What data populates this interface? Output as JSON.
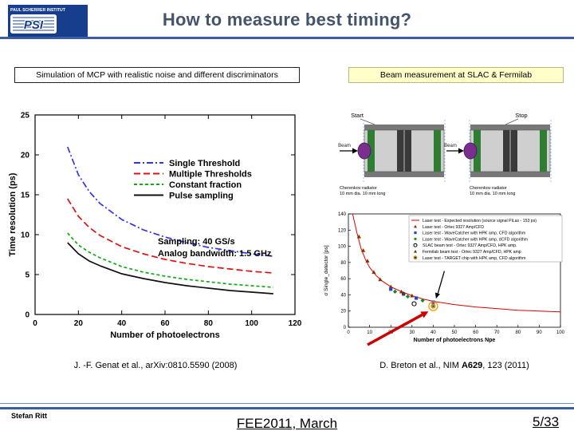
{
  "header": {
    "logo_org": "PAUL SCHERRER INSTITUT",
    "logo_brand": "PSI",
    "title": "How to measure best timing?"
  },
  "colors": {
    "brand_blue": "#173e8c",
    "divider_blue": "#3d5ca8",
    "highlight_yellow": "#ffffc9"
  },
  "panels": {
    "left_label": "Simulation of MCP with realistic noise and different discriminators",
    "right_label": "Beam measurement at SLAC & Fermilab"
  },
  "diagram": {
    "start": "Start",
    "stop": "Stop",
    "beam": "Beam",
    "caption_line1": "Cherenkov radiator",
    "caption_line2": "10 mm dia. 10 mm long"
  },
  "citations": {
    "left": "J. -F. Genat et al., arXiv:0810.5590 (2008)",
    "right_pre": "D. Breton et al., NIM ",
    "right_bold": "A629",
    "right_post": ", 123 (2011)"
  },
  "footer": {
    "author": "Stefan Ritt",
    "conference": "FEE2011, March",
    "page": "5/33"
  },
  "chart_data": [
    {
      "type": "line",
      "title": "",
      "xlabel": "Number of photoelectrons",
      "ylabel": "Time resolution (ps)",
      "xlim": [
        0,
        120
      ],
      "ylim": [
        0,
        25
      ],
      "xticks": [
        0,
        20,
        40,
        60,
        80,
        100,
        120
      ],
      "yticks": [
        0,
        5,
        10,
        15,
        20,
        25
      ],
      "grid": false,
      "legend_position": "upper-center-right",
      "annotation": [
        "Sampling: 40 GS/s",
        "Analog bandwidth: 1.5 GHz"
      ],
      "series": [
        {
          "name": "Single Threshold",
          "color": "#3333ee",
          "style": "dash-dot",
          "x": [
            15,
            20,
            25,
            30,
            40,
            50,
            60,
            70,
            80,
            90,
            100,
            110
          ],
          "y": [
            21.0,
            17.5,
            15.4,
            13.9,
            11.9,
            10.6,
            9.7,
            9.0,
            8.4,
            8.0,
            7.6,
            7.3
          ]
        },
        {
          "name": "Multiple Thresholds",
          "color": "#dd1111",
          "style": "dashed",
          "x": [
            15,
            20,
            25,
            30,
            40,
            50,
            60,
            70,
            80,
            90,
            100,
            110
          ],
          "y": [
            14.5,
            12.3,
            10.9,
            9.9,
            8.5,
            7.6,
            6.9,
            6.4,
            6.0,
            5.7,
            5.4,
            5.2
          ]
        },
        {
          "name": "Constant fraction",
          "color": "#11aa11",
          "style": "short-dash",
          "x": [
            15,
            20,
            25,
            30,
            40,
            50,
            60,
            70,
            80,
            90,
            100,
            110
          ],
          "y": [
            10.2,
            8.7,
            7.8,
            7.1,
            6.0,
            5.3,
            4.8,
            4.4,
            4.1,
            3.8,
            3.6,
            3.4
          ]
        },
        {
          "name": "Pulse sampling",
          "color": "#111111",
          "style": "solid",
          "x": [
            15,
            20,
            25,
            30,
            40,
            50,
            60,
            70,
            80,
            90,
            100,
            110
          ],
          "y": [
            9.0,
            7.6,
            6.7,
            6.1,
            5.1,
            4.5,
            4.0,
            3.6,
            3.3,
            3.0,
            2.8,
            2.6
          ]
        }
      ]
    },
    {
      "type": "scatter",
      "title": "",
      "xlabel": "Number of photoelectrons Npe",
      "ylabel": "σ Single_detector [ps]",
      "xlim": [
        0,
        100
      ],
      "ylim": [
        0,
        140
      ],
      "xticks": [
        0,
        10,
        20,
        30,
        40,
        50,
        60,
        70,
        80,
        90,
        100
      ],
      "yticks": [
        0,
        20,
        40,
        60,
        80,
        100,
        120,
        140
      ],
      "grid": false,
      "legend_position": "upper-right-boxed",
      "series": [
        {
          "name": "Laser test - Expected resolution (source signal PiLas - 153 ps)",
          "color": "#dd0000",
          "style": "line",
          "marker": "none",
          "x": [
            2,
            4,
            6,
            8,
            10,
            13,
            16,
            20,
            25,
            30,
            35,
            40,
            50,
            60,
            70,
            80,
            90,
            100
          ],
          "y": [
            140,
            117,
            97,
            84,
            74,
            64,
            57,
            50,
            44,
            39,
            35,
            32,
            28,
            25,
            23,
            21,
            20,
            19
          ]
        },
        {
          "name": "Laser test - Ortec 9327 Amp/CFD",
          "color": "#8b2f00",
          "style": "none",
          "marker": "triangle",
          "x": [
            5,
            7,
            9,
            12,
            15,
            20,
            25,
            30
          ],
          "y": [
            112,
            95,
            82,
            68,
            59,
            50,
            44,
            39
          ]
        },
        {
          "name": "Laser test - WaveCatcher with HPK amp, CFD algorithm",
          "color": "#2244cc",
          "style": "none",
          "marker": "square",
          "x": [
            20,
            26,
            32,
            40
          ],
          "y": [
            47,
            41,
            36,
            31
          ]
        },
        {
          "name": "Laser test - WaveCatcher with HPK amp, dCFD algorithm",
          "color": "#118822",
          "style": "none",
          "marker": "diamond",
          "x": [
            22,
            28,
            35
          ],
          "y": [
            44,
            38,
            33
          ]
        },
        {
          "name": "SLAC beam test - Ortec 9327 Amp/CFD, HPK amp.",
          "color": "#000000",
          "style": "none",
          "marker": "circle-open",
          "x": [
            31
          ],
          "y": [
            29
          ]
        },
        {
          "name": "Fermilab beam test - Ortec 9327 Amp/CFD, HPK amp",
          "color": "#663300",
          "style": "none",
          "marker": "triangle",
          "x": [
            26
          ],
          "y": [
            42
          ]
        },
        {
          "name": "Laser test - TARGET chip with HPK amp, CFD algorithm",
          "color": "#e6a817",
          "style": "none",
          "marker": "circle-dot",
          "x": [
            40
          ],
          "y": [
            26
          ]
        }
      ],
      "highlight": {
        "x": 40,
        "y": 26
      }
    }
  ]
}
